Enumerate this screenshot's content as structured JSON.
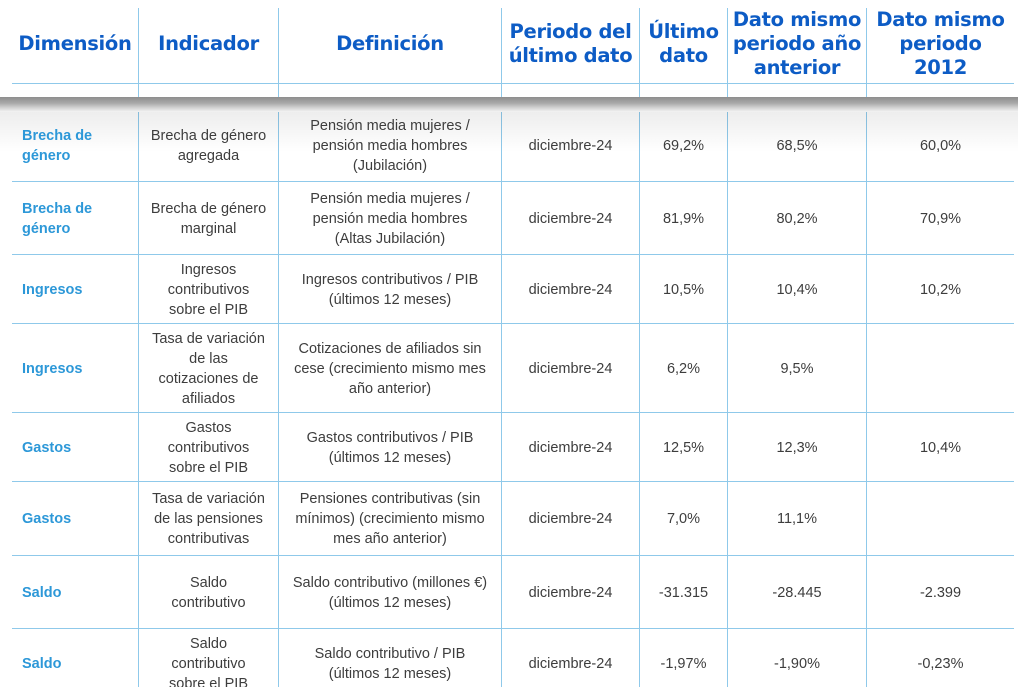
{
  "headers": {
    "dimension": "Dimensión",
    "indicator": "Indicador",
    "definition": "Definición",
    "period": "Periodo del último dato",
    "last": "Último dato",
    "prev": "Dato mismo periodo año anterior",
    "y2012": "Dato mismo periodo 2012"
  },
  "rows": [
    {
      "dimension": "Brecha de género",
      "indicator": "Brecha de género agregada",
      "definition": "Pensión media mujeres / pensión media hombres (Jubilación)",
      "period": "diciembre-24",
      "last": "69,2%",
      "prev": "68,5%",
      "y2012": "60,0%"
    },
    {
      "dimension": "Brecha de género",
      "indicator": "Brecha de género marginal",
      "definition": "Pensión media mujeres / pensión media hombres (Altas Jubilación)",
      "period": "diciembre-24",
      "last": "81,9%",
      "prev": "80,2%",
      "y2012": "70,9%"
    },
    {
      "dimension": "Ingresos",
      "indicator": "Ingresos contributivos sobre el PIB",
      "definition": "Ingresos contributivos / PIB (últimos 12 meses)",
      "period": "diciembre-24",
      "last": "10,5%",
      "prev": "10,4%",
      "y2012": "10,2%"
    },
    {
      "dimension": "Ingresos",
      "indicator": "Tasa de variación de las cotizaciones de afiliados",
      "definition": "Cotizaciones de afiliados sin cese (crecimiento mismo mes año anterior)",
      "period": "diciembre-24",
      "last": "6,2%",
      "prev": "9,5%",
      "y2012": ""
    },
    {
      "dimension": "Gastos",
      "indicator": "Gastos contributivos sobre el PIB",
      "definition": "Gastos contributivos / PIB (últimos 12 meses)",
      "period": "diciembre-24",
      "last": "12,5%",
      "prev": "12,3%",
      "y2012": "10,4%"
    },
    {
      "dimension": "Gastos",
      "indicator": "Tasa de variación de las pensiones contributivas",
      "definition": "Pensiones contributivas (sin mínimos) (crecimiento mismo mes año anterior)",
      "period": "diciembre-24",
      "last": "7,0%",
      "prev": "11,1%",
      "y2012": ""
    },
    {
      "dimension": "Saldo",
      "indicator": "Saldo contributivo",
      "definition": "Saldo contributivo (millones €) (últimos 12 meses)",
      "period": "diciembre-24",
      "last": "-31.315",
      "prev": "-28.445",
      "y2012": "-2.399"
    },
    {
      "dimension": "Saldo",
      "indicator": "Saldo contributivo sobre el PIB",
      "definition": "Saldo contributivo / PIB (últimos 12 meses)",
      "period": "diciembre-24",
      "last": "-1,97%",
      "prev": "-1,90%",
      "y2012": "-0,23%"
    }
  ]
}
